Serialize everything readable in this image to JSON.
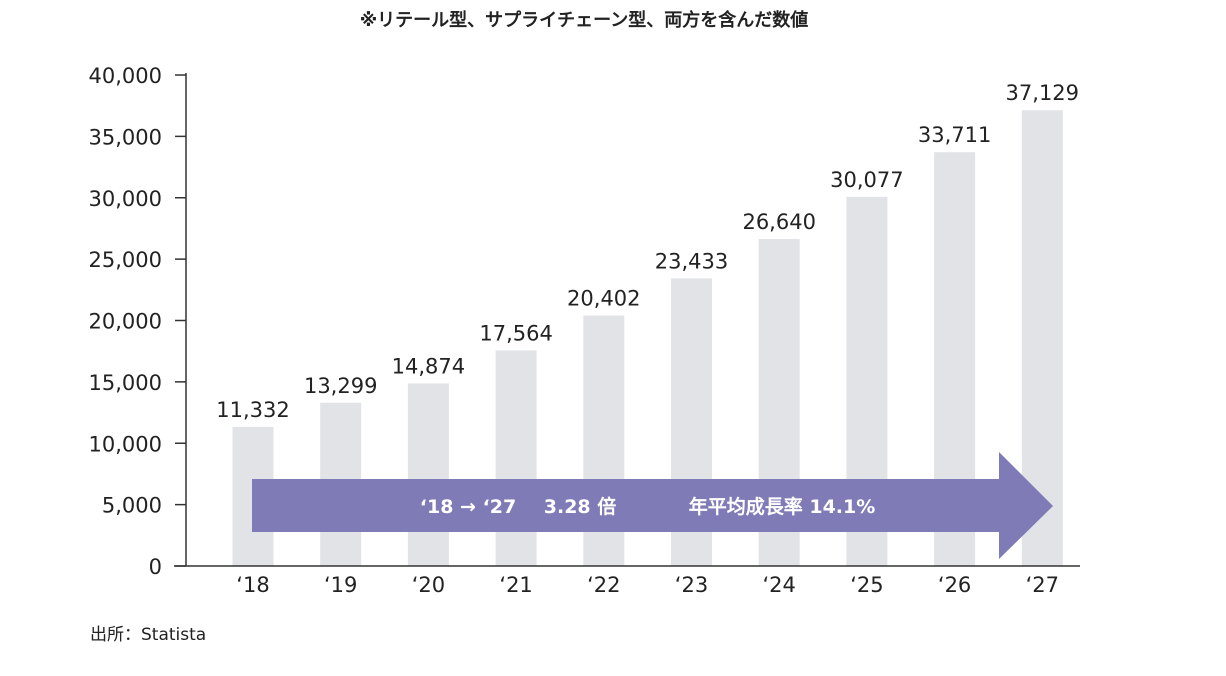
{
  "chart_data": {
    "type": "bar",
    "title": "※リテール型、サプライチェーン型、両方を含んだ数値",
    "xlabel": "",
    "ylabel": "",
    "categories": [
      "‘18",
      "‘19",
      "‘20",
      "‘21",
      "‘22",
      "‘23",
      "‘24",
      "‘25",
      "‘26",
      "‘27"
    ],
    "values": [
      11332,
      13299,
      14874,
      17564,
      20402,
      23433,
      26640,
      30077,
      33711,
      37129
    ],
    "value_labels": [
      "11,332",
      "13,299",
      "14,874",
      "17,564",
      "20,402",
      "23,433",
      "26,640",
      "30,077",
      "33,711",
      "37,129"
    ],
    "ylim": [
      0,
      40000
    ],
    "y_ticks": [
      0,
      5000,
      10000,
      15000,
      20000,
      25000,
      30000,
      35000,
      40000
    ],
    "y_tick_labels": [
      "0",
      "5,000",
      "10,000",
      "15,000",
      "20,000",
      "25,000",
      "30,000",
      "35,000",
      "40,000"
    ],
    "grid": false,
    "bar_color": "#e1e3e6",
    "annotation": {
      "period": "‘18 → ‘27",
      "multiple": "3.28 倍",
      "cagr": "年平均成長率 14.1%",
      "color": "#7f7bb7"
    },
    "source": "出所：Statista"
  }
}
